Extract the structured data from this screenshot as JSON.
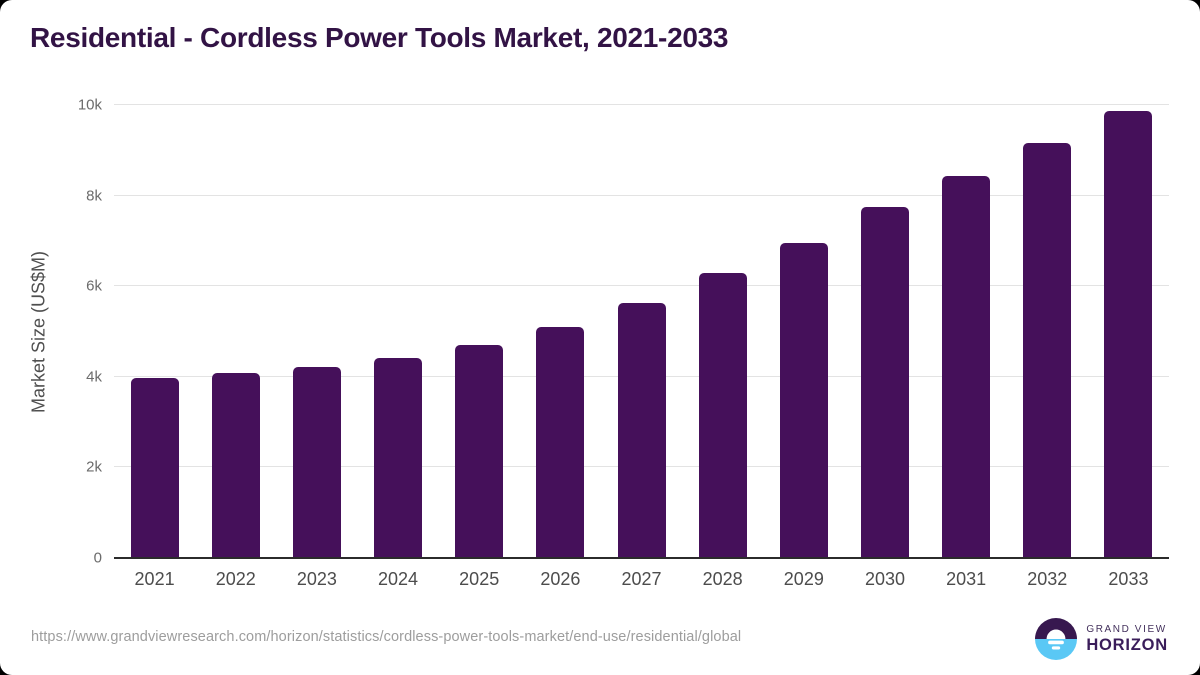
{
  "page": {
    "title": "Residential - Cordless Power Tools Market, 2021-2033"
  },
  "chart_data": {
    "type": "bar",
    "title": "Residential - Cordless Power Tools Market, 2021-2033",
    "categories": [
      "2021",
      "2022",
      "2023",
      "2024",
      "2025",
      "2026",
      "2027",
      "2028",
      "2029",
      "2030",
      "2031",
      "2032",
      "2033"
    ],
    "values": [
      3980,
      4090,
      4210,
      4410,
      4700,
      5090,
      5640,
      6290,
      6960,
      7750,
      8440,
      9160,
      9860
    ],
    "xlabel": "",
    "ylabel": "Market Size (US$M)",
    "ylim": [
      0,
      10000
    ],
    "yticks": [
      {
        "value": 0,
        "label": "0"
      },
      {
        "value": 2000,
        "label": "2k"
      },
      {
        "value": 4000,
        "label": "4k"
      },
      {
        "value": 6000,
        "label": "6k"
      },
      {
        "value": 8000,
        "label": "8k"
      },
      {
        "value": 10000,
        "label": "10k"
      }
    ],
    "grid": "horizontal",
    "legend": "none",
    "bar_color": "#45105a"
  },
  "footer": {
    "source_url": "https://www.grandviewresearch.com/horizon/statistics/cordless-power-tools-market/end-use/residential/global",
    "logo": {
      "line1": "GRAND VIEW",
      "line2": "HORIZON",
      "purple": "#37184f",
      "blue": "#5ac8f5"
    }
  }
}
